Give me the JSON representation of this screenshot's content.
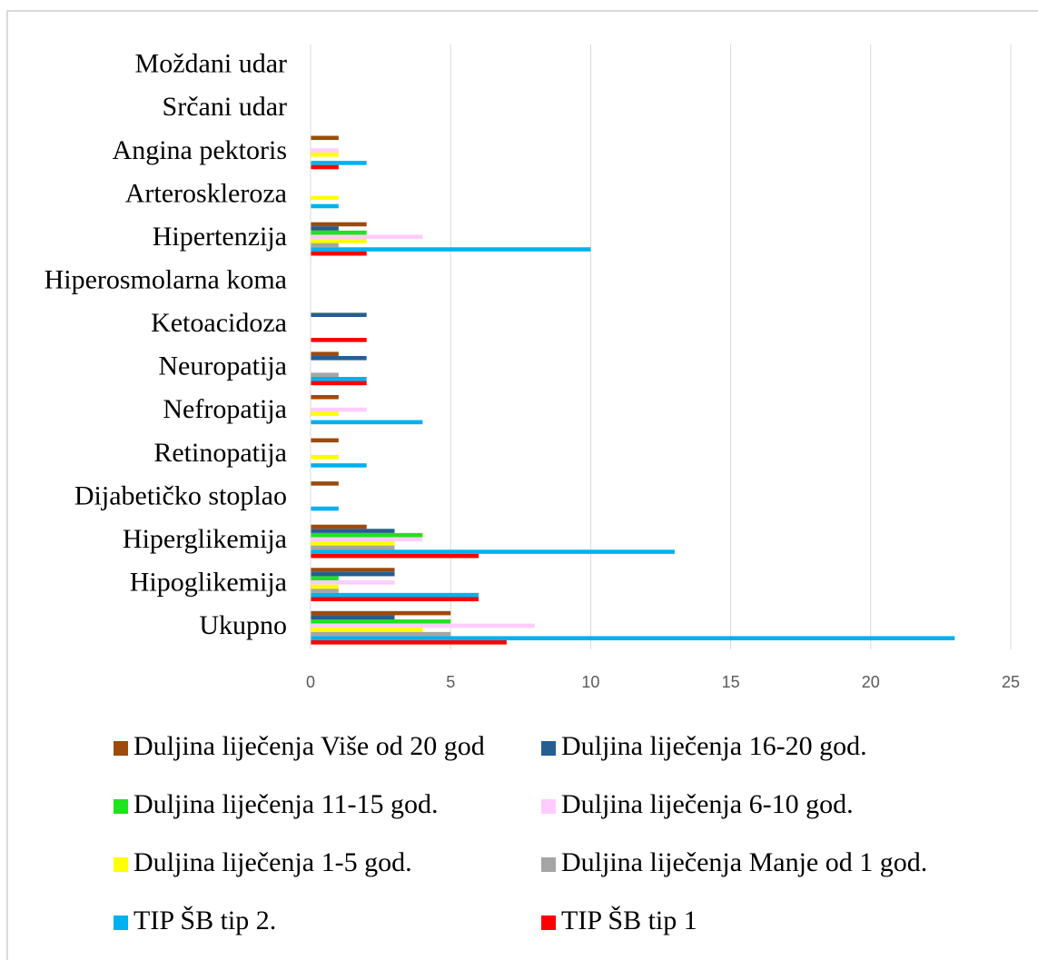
{
  "chart_data": {
    "type": "hbar",
    "categories": [
      "Moždani udar",
      "Srčani udar",
      "Angina pektoris",
      "Arteroskleroza",
      "Hipertenzija",
      "Hiperosmolarna koma",
      "Ketoacidoza",
      "Neuropatija",
      "Nefropatija",
      "Retinopatija",
      "Dijabetičko stoplao",
      "Hiperglikemija",
      "Hipoglikemija",
      "Ukupno"
    ],
    "series": [
      {
        "name": "Duljina liječenja Više od 20 god",
        "color": "#9c4a0e",
        "values": [
          0,
          0,
          1,
          0,
          2,
          0,
          0,
          1,
          1,
          1,
          1,
          2,
          3,
          5
        ]
      },
      {
        "name": "Duljina liječenja 16-20 god.",
        "color": "#255e91",
        "values": [
          0,
          0,
          0,
          0,
          1,
          0,
          2,
          2,
          0,
          0,
          0,
          3,
          3,
          3
        ]
      },
      {
        "name": "Duljina liječenja 11-15 god.",
        "color": "#1ee31e",
        "values": [
          0,
          0,
          0,
          0,
          2,
          0,
          0,
          0,
          0,
          0,
          0,
          4,
          1,
          5
        ]
      },
      {
        "name": "Duljina liječenja 6-10 god.",
        "color": "#ffccff",
        "values": [
          0,
          0,
          1,
          0,
          4,
          0,
          0,
          0,
          2,
          0,
          0,
          4,
          3,
          8
        ]
      },
      {
        "name": "Duljina liječenja 1-5 god.",
        "color": "#ffff00",
        "values": [
          0,
          0,
          1,
          1,
          2,
          0,
          0,
          0,
          1,
          1,
          0,
          3,
          1,
          4
        ]
      },
      {
        "name": "Duljina liječenja Manje od 1 god.",
        "color": "#a5a5a5",
        "values": [
          0,
          0,
          0,
          0,
          1,
          0,
          0,
          1,
          0,
          0,
          0,
          3,
          1,
          5
        ]
      },
      {
        "name": "TIP ŠB tip 2.",
        "color": "#00b0f0",
        "values": [
          0,
          0,
          2,
          1,
          10,
          0,
          0,
          2,
          4,
          2,
          1,
          13,
          6,
          23
        ]
      },
      {
        "name": "TIP ŠB tip 1",
        "color": "#ff0000",
        "values": [
          0,
          0,
          1,
          0,
          2,
          0,
          2,
          2,
          0,
          0,
          0,
          6,
          6,
          7
        ]
      }
    ],
    "xlim": [
      0,
      25
    ],
    "xticks": [
      0,
      5,
      10,
      15,
      20,
      25
    ],
    "grid": true,
    "legend": "bottom"
  }
}
